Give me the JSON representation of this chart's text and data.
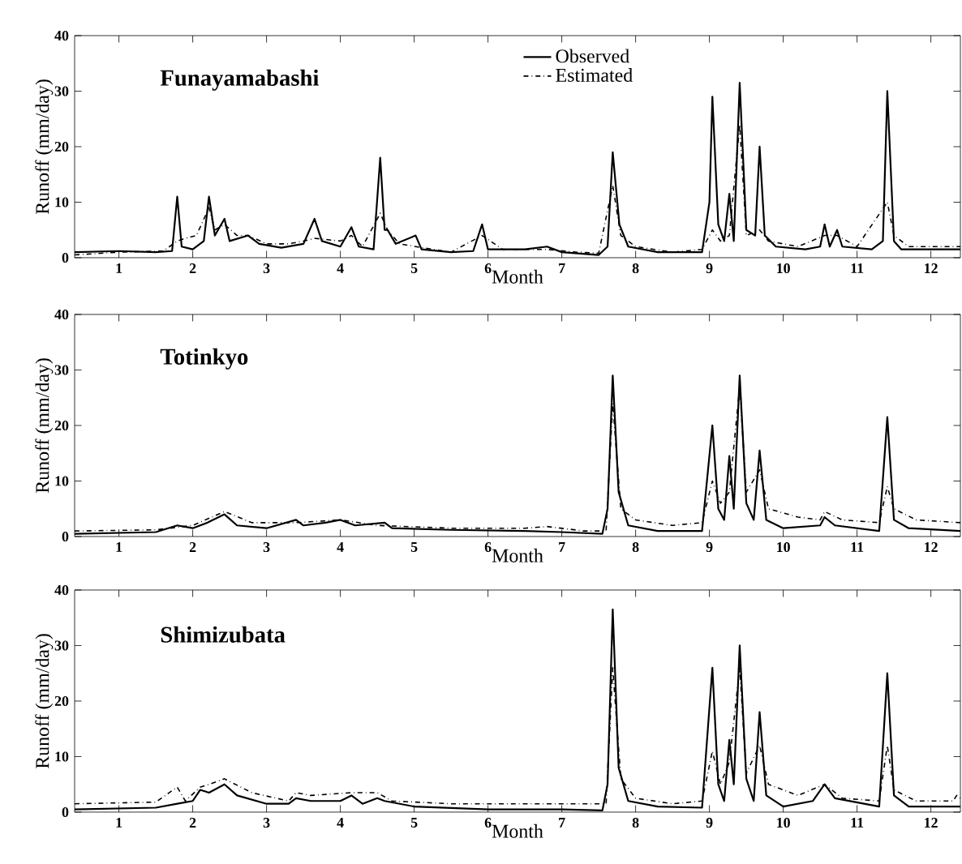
{
  "chart_data": [
    {
      "type": "line",
      "title": "Funayamabashi",
      "xlabel": "Month",
      "ylabel": "Runoff (mm/day)",
      "xlim": [
        0.4,
        12.4
      ],
      "ylim": [
        0,
        40
      ],
      "xticks": [
        1,
        2,
        3,
        4,
        5,
        6,
        7,
        8,
        9,
        10,
        11,
        12
      ],
      "yticks": [
        0,
        10,
        20,
        30,
        40
      ],
      "legend": "top",
      "grid": false,
      "marker": "none",
      "series": [
        {
          "name": "Observed",
          "color": "#000000",
          "line_style": "solid",
          "x": [
            0.4,
            1.0,
            1.5,
            1.72,
            1.79,
            1.85,
            2.0,
            2.15,
            2.22,
            2.3,
            2.43,
            2.5,
            2.75,
            2.9,
            3.2,
            3.5,
            3.65,
            3.75,
            4.0,
            4.15,
            4.25,
            4.45,
            4.54,
            4.6,
            4.64,
            4.75,
            5.02,
            5.1,
            5.5,
            5.8,
            5.92,
            6.0,
            6.5,
            6.8,
            7.0,
            7.5,
            7.62,
            7.69,
            7.78,
            7.9,
            8.3,
            8.9,
            9.0,
            9.04,
            9.12,
            9.2,
            9.27,
            9.33,
            9.41,
            9.5,
            9.62,
            9.68,
            9.75,
            9.9,
            10.3,
            10.5,
            10.56,
            10.63,
            10.73,
            10.8,
            11.2,
            11.35,
            11.41,
            11.5,
            11.6,
            12.4
          ],
          "values": [
            1,
            1.2,
            1,
            1.2,
            11,
            2,
            1.5,
            3,
            11,
            4,
            7,
            3,
            4,
            2.5,
            1.8,
            2.5,
            7,
            3,
            2,
            5.5,
            2,
            1.5,
            18,
            5,
            5,
            2.5,
            4,
            1.5,
            1,
            1.2,
            6,
            1.5,
            1.5,
            2,
            1,
            0.5,
            2,
            19,
            6,
            2,
            1,
            1,
            10,
            29,
            6,
            3,
            11.5,
            3,
            31.5,
            5,
            4,
            20,
            4,
            2,
            1.5,
            2,
            6,
            2,
            5,
            2,
            1.5,
            3,
            30,
            3,
            1.5,
            1.5
          ]
        },
        {
          "name": "Estimated",
          "color": "#000000",
          "line_style": "dashed",
          "x": [
            0.4,
            1.0,
            1.6,
            1.79,
            1.9,
            2.05,
            2.22,
            2.3,
            2.43,
            2.6,
            2.75,
            3.0,
            3.3,
            3.5,
            3.65,
            4.0,
            4.15,
            4.3,
            4.54,
            4.64,
            4.8,
            5.02,
            5.5,
            5.92,
            6.2,
            6.8,
            7.2,
            7.5,
            7.69,
            7.8,
            8.0,
            8.5,
            8.9,
            9.04,
            9.15,
            9.27,
            9.41,
            9.5,
            9.68,
            9.8,
            10.2,
            10.56,
            10.73,
            11.0,
            11.41,
            11.5,
            11.7,
            12.4
          ],
          "values": [
            0.5,
            1,
            1.2,
            3,
            3.5,
            4,
            9,
            5,
            6,
            4,
            4,
            2.5,
            2.5,
            3,
            3.5,
            3,
            4,
            2,
            8,
            5,
            2.5,
            2,
            1,
            4,
            1.5,
            1.5,
            1,
            0.8,
            13,
            4,
            2,
            1,
            1.5,
            5,
            3,
            4,
            24,
            4,
            5,
            3,
            2,
            4,
            4,
            2,
            10,
            4,
            2,
            2
          ]
        }
      ]
    },
    {
      "type": "line",
      "title": "Totinkyo",
      "xlabel": "Month",
      "ylabel": "Runoff (mm/day)",
      "xlim": [
        0.4,
        12.4
      ],
      "ylim": [
        0,
        40
      ],
      "xticks": [
        1,
        2,
        3,
        4,
        5,
        6,
        7,
        8,
        9,
        10,
        11,
        12
      ],
      "yticks": [
        0,
        10,
        20,
        30,
        40
      ],
      "grid": false,
      "marker": "none",
      "series": [
        {
          "color": "#000000",
          "line_style": "solid",
          "x": [
            0.4,
            1.5,
            1.79,
            2.0,
            2.2,
            2.43,
            2.6,
            3.0,
            3.4,
            3.5,
            3.8,
            4.0,
            4.2,
            4.6,
            4.7,
            5.5,
            6.5,
            7.0,
            7.55,
            7.62,
            7.69,
            7.77,
            7.9,
            8.3,
            8.9,
            9.04,
            9.12,
            9.2,
            9.27,
            9.33,
            9.41,
            9.5,
            9.6,
            9.68,
            9.77,
            10.0,
            10.5,
            10.56,
            10.7,
            11.3,
            11.41,
            11.5,
            11.7,
            12.4
          ],
          "values": [
            0.5,
            0.8,
            2,
            1.5,
            2.5,
            4,
            2,
            1.5,
            3,
            2,
            2.5,
            3,
            2,
            2.5,
            1.5,
            1.2,
            1,
            0.8,
            0.5,
            5,
            29,
            8,
            2,
            1,
            1,
            20,
            5,
            3,
            14.5,
            5,
            29,
            6,
            3,
            15.5,
            3,
            1.5,
            2,
            3.5,
            2,
            1,
            21.5,
            3,
            1.5,
            1
          ]
        },
        {
          "color": "#000000",
          "line_style": "dashed",
          "x": [
            0.4,
            1.5,
            2.0,
            2.43,
            2.8,
            3.4,
            4.0,
            4.5,
            5.5,
            6.5,
            6.8,
            7.3,
            7.6,
            7.69,
            7.8,
            8.0,
            8.5,
            8.9,
            9.04,
            9.15,
            9.27,
            9.41,
            9.5,
            9.68,
            9.8,
            10.2,
            10.5,
            10.56,
            10.8,
            11.3,
            11.41,
            11.5,
            11.8,
            12.4
          ],
          "values": [
            1,
            1.2,
            2,
            4.5,
            2.5,
            2.5,
            3,
            2,
            1.5,
            1.5,
            1.8,
            1,
            1,
            24,
            5,
            3,
            2,
            2.5,
            10,
            6,
            8,
            27,
            8,
            12,
            5,
            3.5,
            3,
            4.5,
            3,
            2.5,
            9,
            5,
            3,
            2.5
          ]
        }
      ]
    },
    {
      "type": "line",
      "title": "Shimizubata",
      "xlabel": "Month",
      "ylabel": "Runoff (mm/day)",
      "xlim": [
        0.4,
        12.4
      ],
      "ylim": [
        0,
        40
      ],
      "xticks": [
        1,
        2,
        3,
        4,
        5,
        6,
        7,
        8,
        9,
        10,
        11,
        12
      ],
      "yticks": [
        0,
        10,
        20,
        30,
        40
      ],
      "grid": false,
      "marker": "none",
      "series": [
        {
          "color": "#000000",
          "line_style": "solid",
          "x": [
            0.4,
            1.5,
            1.79,
            2.0,
            2.1,
            2.22,
            2.43,
            2.6,
            3.0,
            3.3,
            3.4,
            3.6,
            4.0,
            4.15,
            4.3,
            4.5,
            4.6,
            5.0,
            6.0,
            7.0,
            7.55,
            7.62,
            7.69,
            7.77,
            7.9,
            8.3,
            8.9,
            9.04,
            9.12,
            9.2,
            9.27,
            9.33,
            9.41,
            9.5,
            9.6,
            9.68,
            9.77,
            10.0,
            10.4,
            10.56,
            10.7,
            11.3,
            11.41,
            11.5,
            11.7,
            12.4
          ],
          "values": [
            0.5,
            0.8,
            1.5,
            2,
            4,
            3.5,
            5,
            3,
            1.5,
            1.5,
            2.5,
            2,
            2,
            3,
            1.5,
            2.5,
            2,
            1,
            0.5,
            0.5,
            0.3,
            5,
            36.5,
            8,
            2,
            1,
            0.8,
            26,
            5,
            2,
            13,
            5,
            30,
            6,
            2,
            18,
            3,
            1,
            2,
            5,
            2.5,
            1,
            25,
            3,
            1,
            1
          ]
        },
        {
          "color": "#000000",
          "line_style": "dashed",
          "x": [
            0.4,
            1.5,
            1.79,
            1.9,
            2.1,
            2.22,
            2.43,
            2.8,
            3.3,
            3.4,
            3.6,
            4.15,
            4.5,
            4.7,
            5.5,
            6.5,
            7.3,
            7.6,
            7.69,
            7.8,
            8.0,
            8.5,
            8.9,
            9.04,
            9.15,
            9.27,
            9.41,
            9.5,
            9.68,
            9.8,
            10.2,
            10.56,
            10.8,
            11.3,
            11.41,
            11.5,
            11.8,
            12.3,
            12.35,
            12.4
          ],
          "values": [
            1.5,
            1.8,
            4.5,
            2,
            4.5,
            5,
            6,
            3.5,
            2,
            3.5,
            3,
            3.5,
            3.5,
            2,
            1.5,
            1.5,
            1.5,
            1.5,
            26,
            6,
            2.5,
            1.5,
            2,
            11,
            5,
            9,
            26,
            7,
            12,
            5,
            3,
            5,
            2.5,
            2,
            12,
            4,
            2,
            2,
            3,
            2.5
          ]
        }
      ]
    }
  ]
}
